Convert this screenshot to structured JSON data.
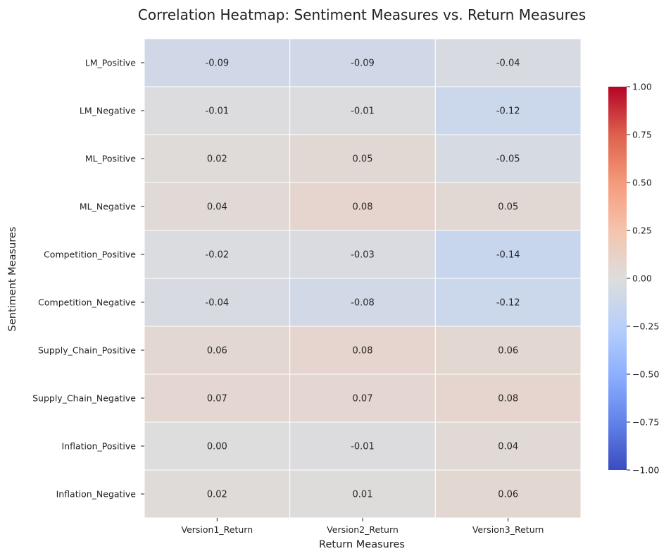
{
  "chart_data": {
    "type": "heatmap",
    "title": "Correlation Heatmap: Sentiment Measures vs. Return Measures",
    "xlabel": "Return Measures",
    "ylabel": "Sentiment Measures",
    "columns": [
      "Version1_Return",
      "Version2_Return",
      "Version3_Return"
    ],
    "rows": [
      "LM_Positive",
      "LM_Negative",
      "ML_Positive",
      "ML_Negative",
      "Competition_Positive",
      "Competition_Negative",
      "Supply_Chain_Positive",
      "Supply_Chain_Negative",
      "Inflation_Positive",
      "Inflation_Negative"
    ],
    "values": [
      [
        -0.09,
        -0.09,
        -0.04
      ],
      [
        -0.01,
        -0.01,
        -0.12
      ],
      [
        0.02,
        0.05,
        -0.05
      ],
      [
        0.04,
        0.08,
        0.05
      ],
      [
        -0.02,
        -0.03,
        -0.14
      ],
      [
        -0.04,
        -0.08,
        -0.12
      ],
      [
        0.06,
        0.08,
        0.06
      ],
      [
        0.07,
        0.07,
        0.08
      ],
      [
        0.0,
        -0.01,
        0.04
      ],
      [
        0.02,
        0.01,
        0.06
      ]
    ],
    "value_range": [
      -1.0,
      1.0
    ],
    "colormap": "coolwarm",
    "colorbar_ticks": [
      1.0,
      0.75,
      0.5,
      0.25,
      0.0,
      -0.25,
      -0.5,
      -0.75,
      -1.0
    ],
    "colorbar_tick_labels": [
      "1.00",
      "0.75",
      "0.50",
      "0.25",
      "0.00",
      "−0.25",
      "−0.50",
      "−0.75",
      "−1.00"
    ],
    "cell_label_format": "2 decimals",
    "grid": false
  }
}
